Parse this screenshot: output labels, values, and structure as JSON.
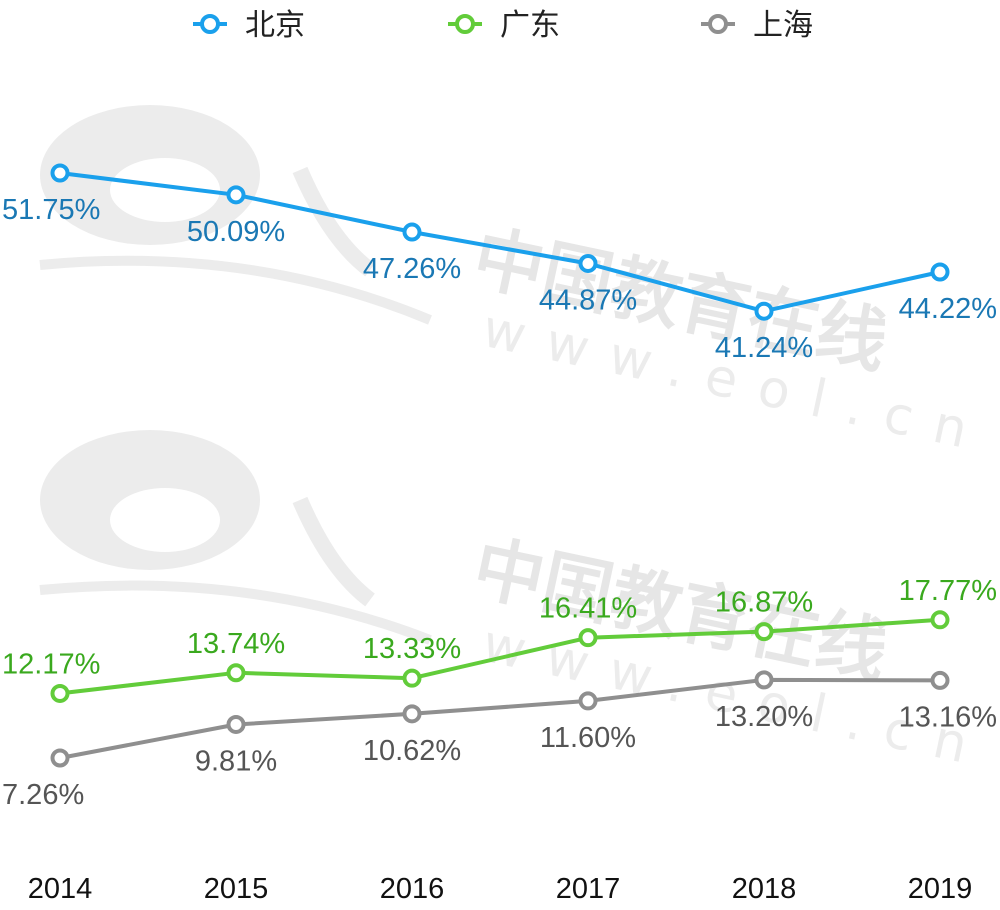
{
  "watermark": {
    "logo_text": "eol",
    "name": "中国教育在线",
    "url": "www.eol.cn"
  },
  "chart_data": {
    "type": "line",
    "categories": [
      "2014",
      "2015",
      "2016",
      "2017",
      "2018",
      "2019"
    ],
    "series": [
      {
        "name": "北京",
        "color": "#1aa0ec",
        "label_color": "#1a78b4",
        "values": [
          51.75,
          50.09,
          47.26,
          44.87,
          41.24,
          44.22
        ],
        "labels": [
          "51.75%",
          "50.09%",
          "47.26%",
          "44.87%",
          "41.24%",
          "44.22%"
        ],
        "label_side": [
          "below",
          "below",
          "below",
          "below",
          "below",
          "below"
        ]
      },
      {
        "name": "广东",
        "color": "#62cc3a",
        "label_color": "#3aa91e",
        "values": [
          12.17,
          13.74,
          13.33,
          16.41,
          16.87,
          17.77
        ],
        "labels": [
          "12.17%",
          "13.74%",
          "13.33%",
          "16.41%",
          "16.87%",
          "17.77%"
        ],
        "label_side": [
          "above",
          "above",
          "above",
          "above",
          "above",
          "above"
        ]
      },
      {
        "name": "上海",
        "color": "#8f8f8f",
        "label_color": "#555555",
        "values": [
          7.26,
          9.81,
          10.62,
          11.6,
          13.2,
          13.16
        ],
        "labels": [
          "7.26%",
          "9.81%",
          "10.62%",
          "11.60%",
          "13.20%",
          "13.16%"
        ],
        "label_side": [
          "below",
          "below",
          "below",
          "below",
          "below",
          "below"
        ]
      }
    ],
    "title": "",
    "xlabel": "",
    "ylabel": "",
    "ylim": [
      5,
      53
    ],
    "grid": false,
    "legend": "top-center"
  }
}
